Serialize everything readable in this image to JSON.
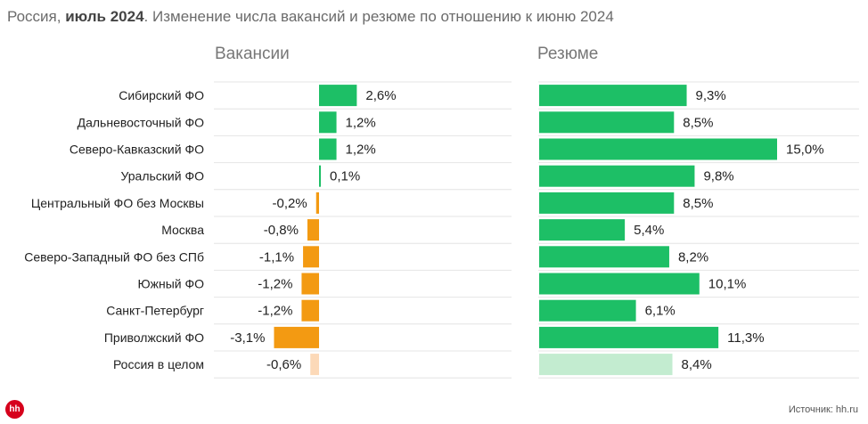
{
  "header": {
    "prefix": "Россия, ",
    "period": "июль 2024",
    "suffix": ". Изменение числа вакансий и резюме по отношению к июню 2024"
  },
  "colors": {
    "positive": "#1dbf66",
    "negative": "#f39a12",
    "total_negative": "#fcd9b8",
    "total_positive": "#c3ecd0",
    "grid": "#e4e4e4"
  },
  "chart_data": [
    {
      "type": "bar",
      "orientation": "horizontal",
      "title": "Вакансии",
      "categories": [
        "Сибирский ФО",
        "Дальневосточный ФО",
        "Северо-Кавказский ФО",
        "Уральский ФО",
        "Центральный ФО без Москвы",
        "Москва",
        "Северо-Западный ФО без СПб",
        "Южный ФО",
        "Санкт-Петербург",
        "Приволжский ФО",
        "Россия в целом"
      ],
      "values": [
        2.6,
        1.2,
        1.2,
        0.1,
        -0.2,
        -0.8,
        -1.1,
        -1.2,
        -1.2,
        -3.1,
        -0.6
      ],
      "labels": [
        "2,6%",
        "1,2%",
        "1,2%",
        "0,1%",
        "-0,2%",
        "-0,8%",
        "-1,1%",
        "-1,2%",
        "-1,2%",
        "-3,1%",
        "-0,6%"
      ],
      "highlight_last": true
    },
    {
      "type": "bar",
      "orientation": "horizontal",
      "title": "Резюме",
      "categories": [
        "Сибирский ФО",
        "Дальневосточный ФО",
        "Северо-Кавказский ФО",
        "Уральский ФО",
        "Центральный ФО без Москвы",
        "Москва",
        "Северо-Западный ФО без СПб",
        "Южный ФО",
        "Санкт-Петербург",
        "Приволжский ФО",
        "Россия в целом"
      ],
      "values": [
        9.3,
        8.5,
        15.0,
        9.8,
        8.5,
        5.4,
        8.2,
        10.1,
        6.1,
        11.3,
        8.4
      ],
      "labels": [
        "9,3%",
        "8,5%",
        "15,0%",
        "9,8%",
        "8,5%",
        "5,4%",
        "8,2%",
        "10,1%",
        "6,1%",
        "11,3%",
        "8,4%"
      ],
      "highlight_last": true
    }
  ],
  "footer": {
    "logo": "hh",
    "source": "Источник: hh.ru"
  }
}
